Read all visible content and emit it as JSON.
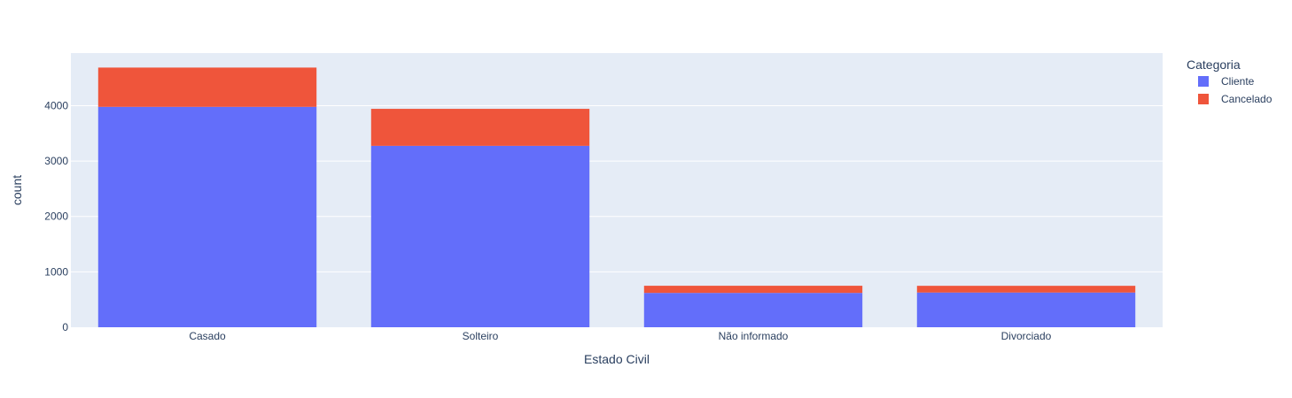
{
  "chart_data": {
    "type": "bar",
    "barmode": "stack",
    "xlabel": "Estado Civil",
    "ylabel": "count",
    "ylim": [
      0,
      4950
    ],
    "yticks": [
      0,
      1000,
      2000,
      3000,
      4000
    ],
    "categories": [
      "Casado",
      "Solteiro",
      "Não informado",
      "Divorciado"
    ],
    "legend": {
      "title": "Categoria",
      "position": "right"
    },
    "series": [
      {
        "name": "Cliente",
        "color": "#636efa",
        "values": [
          3979,
          3275,
          620,
          627
        ]
      },
      {
        "name": "Cancelado",
        "color": "#ef553b",
        "values": [
          709,
          668,
          129,
          121
        ]
      }
    ],
    "plot_bg": "#e5ecf6",
    "grid": true
  }
}
